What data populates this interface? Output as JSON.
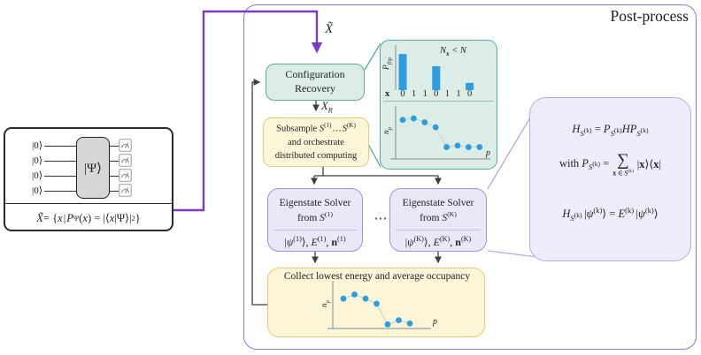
{
  "colors": {
    "accent_purple": "#7a3bc4",
    "outer_border_purple": "#8a7ad2",
    "teal_border": "#56ab99",
    "teal_fill": "#dcede8",
    "yellow_fill": "#fcf5d8",
    "yellow_border": "#e5cb72",
    "lavender_fill": "#eae8f8",
    "lavender_border": "#9d94d4",
    "callout_fill": "#edecfb",
    "callout_border": "#b5ace2",
    "data_blue": "#2b9de0"
  },
  "post_process_label": "Post-process",
  "circuit": {
    "qubit_labels": [
      "|0⟩",
      "|0⟩",
      "|0⟩",
      "|0⟩"
    ],
    "gate_label": "|Ψ⟩",
    "formula_html": "<i>X̃</i> = {<i>x</i>&hairsp;|&hairsp;<i>P</i><sub>Ψ</sub>(<i>x</i>) = |⟨<i>x</i>|Ψ⟩|<sup>2</sup>}"
  },
  "flow": {
    "x_tilde_html": "<i>X̃</i>",
    "x_r_html": "<i>X</i><sub><i>R</i></sub>",
    "config_recovery": {
      "line1": "Configuration",
      "line2": "Recovery"
    },
    "subsample_html": "Subsample <i>S</i><sup>(1)</sup>&hairsp;…&hairsp;<i>S</i><sup>(K)</sup><br>and orchestrate<br>distributed computing",
    "solver_1": {
      "title_html": "Eigenstate Solver<br>from <i>S</i><sup>(1)</sup>",
      "output_html": "|<i>ψ</i><sup>(1)</sup>⟩, <i>E</i><sup>(1)</sup>, <b>n</b><sup>(1)</sup>"
    },
    "ellipsis": "⋯",
    "solver_k": {
      "title_html": "Eigenstate Solver<br>from <i>S</i><sup>(K)</sup>",
      "output_html": "|<i>ψ</i><sup>(K)</sup>⟩, <i>E</i><sup>(K)</sup>, <b>n</b><sup>(K)</sup>"
    },
    "collect_title": "Collect lowest energy and average occupancy"
  },
  "callout": {
    "eq1_html": "<i>H</i><sub><i>S</i><sup>(k)</sup></sub> = <i>P</i><sub><i>S</i><sup>(k)</sup></sub><i>H</i><i>P</i><sub><i>S</i><sup>(k)</sup></sub>",
    "eq2_prefix_html": "with <i>P</i><sub><i>S</i><sup>(k)</sup></sub> =",
    "sum_symbol": "∑",
    "sum_sub_html": "<b>x</b>&thinsp;∈&thinsp;<i>S</i><sup>(k)</sup>",
    "eq2_suffix_html": "|<b>x</b>⟩⟨<b>x</b>|",
    "eq3_html": "<i>H</i><sub><i>S</i><sup>(k)</sup></sub>&thinsp;|<i>ψ</i><sup>(k)</sup>⟩ = <i>E</i><sup>(k)</sup>&thinsp;|<i>ψ</i><sup>(k)</sup>⟩"
  },
  "chart_data": [
    {
      "type": "bar",
      "ylabel": "P_flip",
      "ylabel_html": "P<sub>flip</sub>",
      "x_axis_var": "x",
      "categories": [
        "0",
        "1",
        "1",
        "0",
        "1",
        "1",
        "0"
      ],
      "values": [
        0.8,
        0,
        0,
        0.53,
        0,
        0,
        0.16
      ],
      "annotation": "N_x < N",
      "annotation_html": "N<sub><b>x</b></sub> &lt; N"
    },
    {
      "type": "scatter",
      "ylabel": "n_p",
      "ylabel_html": "n<sub>p</sub>",
      "xlabel": "p",
      "x": [
        1,
        2,
        3,
        4,
        5,
        6,
        7,
        8
      ],
      "y": [
        0.79,
        0.82,
        0.74,
        0.64,
        0.24,
        0.27,
        0.24,
        0.24
      ]
    },
    {
      "type": "scatter",
      "ylabel": "n_p",
      "ylabel_html": "n<sub>p</sub>",
      "xlabel": "p",
      "x": [
        1,
        2,
        3,
        4,
        5,
        6,
        7
      ],
      "y": [
        0.65,
        0.74,
        0.65,
        0.54,
        0.09,
        0.18,
        0.11
      ]
    }
  ]
}
